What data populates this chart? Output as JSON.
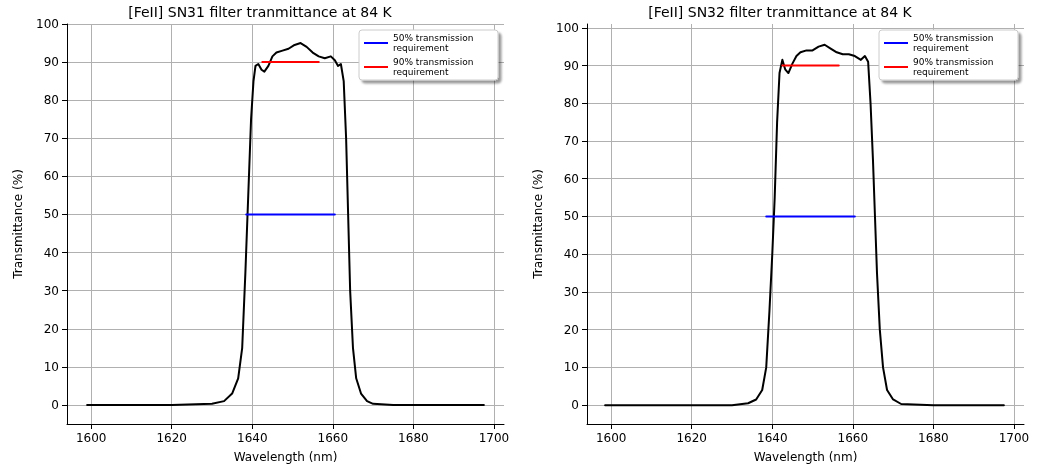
{
  "chart_data": [
    {
      "type": "line",
      "title": "[FeII] SN31 filter tranmittance at 84 K",
      "xlabel": "Wavelength (nm)",
      "ylabel": "Transmittance (%)",
      "xlim": [
        1594,
        1702.5
      ],
      "xticks": [
        1600,
        1620,
        1640,
        1660,
        1680,
        1700
      ],
      "ylim": [
        -5,
        100
      ],
      "yticks": [
        0,
        10,
        20,
        30,
        40,
        50,
        60,
        70,
        80,
        90,
        100
      ],
      "grid": true,
      "legend": "top right",
      "marker": "none",
      "line_style": "solid",
      "series": [
        {
          "color": "#000000",
          "x": [
            1599,
            1610,
            1620,
            1630,
            1633,
            1635,
            1636.5,
            1637.5,
            1638.3,
            1639,
            1639.7,
            1640.3,
            1640.8,
            1641.5,
            1642.3,
            1643,
            1644,
            1645,
            1646,
            1647.5,
            1649,
            1650.5,
            1652,
            1653.5,
            1655,
            1656.5,
            1658,
            1659.5,
            1660.5,
            1661.3,
            1662,
            1662.7,
            1663.3,
            1663.8,
            1664.3,
            1665,
            1665.8,
            1667,
            1668.5,
            1670,
            1675,
            1685,
            1697.5
          ],
          "values": [
            0,
            0,
            0,
            0.3,
            1,
            3,
            7,
            15,
            35,
            55,
            75,
            85,
            89,
            89.5,
            88,
            87.5,
            89,
            91.5,
            92.5,
            93,
            93.5,
            94.5,
            95,
            94,
            92.5,
            91.5,
            91,
            91.5,
            90.5,
            89,
            89.5,
            85,
            70,
            50,
            30,
            15,
            7,
            3,
            1,
            0.3,
            0,
            0,
            0
          ]
        },
        {
          "name": "50% transmission requirement",
          "color": "#0000ff",
          "x": [
            1638.5,
            1660.5
          ],
          "values": [
            50,
            50
          ]
        },
        {
          "name": "90% transmission requirement",
          "color": "#ff0000",
          "x": [
            1642.5,
            1656.5
          ],
          "values": [
            90,
            90
          ]
        }
      ]
    },
    {
      "type": "line",
      "title": "[FeII] SN32 filter tranmittance at 84 K",
      "xlabel": "Wavelength (nm)",
      "ylabel": "Transmittance (%)",
      "xlim": [
        1594,
        1702.5
      ],
      "xticks": [
        1600,
        1620,
        1640,
        1660,
        1680,
        1700
      ],
      "ylim": [
        -5,
        101
      ],
      "yticks": [
        0,
        10,
        20,
        30,
        40,
        50,
        60,
        70,
        80,
        90,
        100
      ],
      "grid": true,
      "legend": "top right",
      "marker": "none",
      "line_style": "solid",
      "series": [
        {
          "color": "#000000",
          "x": [
            1598.5,
            1610,
            1620,
            1630,
            1634,
            1636,
            1637.5,
            1638.5,
            1639.3,
            1640,
            1640.6,
            1641.2,
            1641.8,
            1642.5,
            1643.2,
            1644,
            1645,
            1646,
            1647,
            1648.5,
            1650,
            1651.5,
            1653,
            1654.5,
            1656,
            1657.5,
            1659,
            1660.5,
            1662,
            1663,
            1663.8,
            1664.4,
            1665,
            1665.5,
            1666,
            1666.7,
            1667.5,
            1668.5,
            1670,
            1672,
            1680,
            1690,
            1697.5
          ],
          "values": [
            0,
            0,
            0,
            0,
            0.5,
            1.5,
            4,
            10,
            25,
            40,
            55,
            75,
            88,
            91.5,
            89,
            88,
            90.5,
            92.5,
            93.5,
            94,
            94,
            95,
            95.5,
            94.5,
            93.5,
            93,
            93,
            92.5,
            91.5,
            92.5,
            91,
            80,
            65,
            50,
            35,
            20,
            10,
            4,
            1.5,
            0.3,
            0,
            0,
            0
          ]
        },
        {
          "name": "50% transmission requirement",
          "color": "#0000ff",
          "x": [
            1638.5,
            1660.5
          ],
          "values": [
            50,
            50
          ]
        },
        {
          "name": "90% transmission requirement",
          "color": "#ff0000",
          "x": [
            1642.5,
            1656.5
          ],
          "values": [
            90,
            90
          ]
        }
      ]
    }
  ]
}
